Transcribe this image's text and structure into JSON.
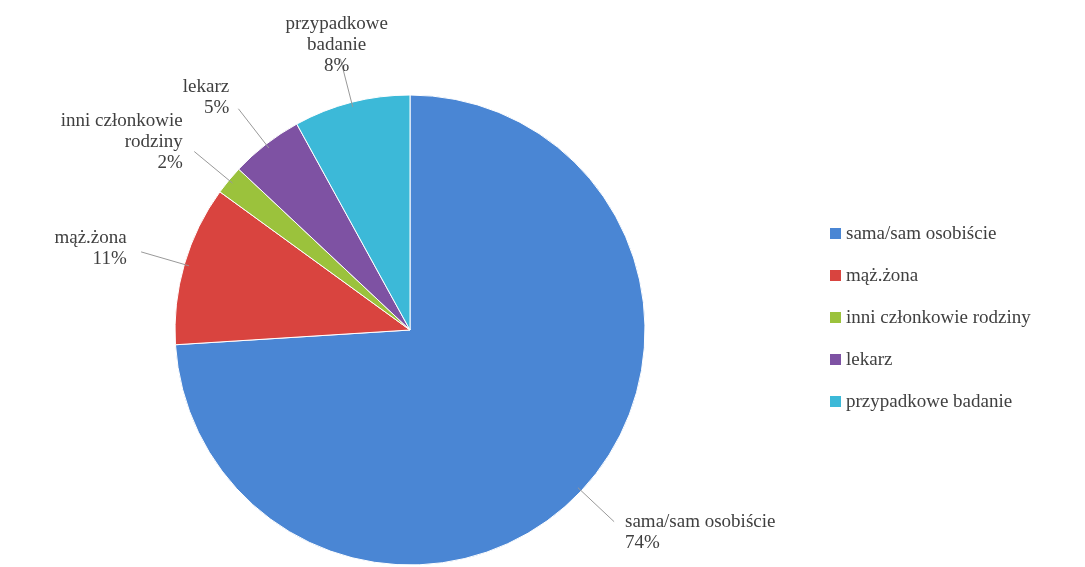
{
  "chart_data": {
    "type": "pie",
    "categories": [
      "sama/sam osobiście",
      "mąż.żona",
      "inni członkowie rodziny",
      "lekarz",
      "przypadkowe badanie"
    ],
    "values": [
      74,
      11,
      2,
      5,
      8
    ],
    "value_labels": [
      "74%",
      "11%",
      "2%",
      "5%",
      "8%"
    ],
    "colors": [
      "#4a86d4",
      "#d9443f",
      "#9bc23c",
      "#7e52a3",
      "#3cb9d8"
    ],
    "legend": "right"
  }
}
